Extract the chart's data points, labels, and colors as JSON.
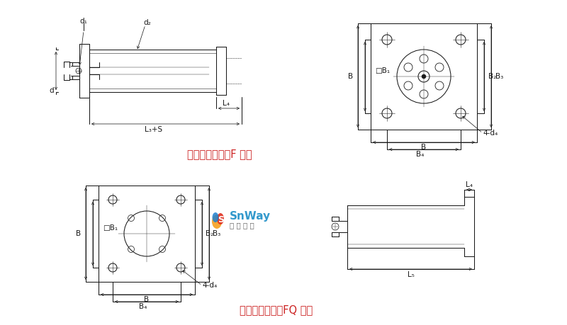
{
  "bg_color": "#ffffff",
  "line_color": "#1a1a1a",
  "title1": "后法兰式气缸（F 型）",
  "title2": "前法兰式气缸（FQ 型）",
  "title_color": "#cc2222",
  "title_fontsize": 10.5,
  "label_fontsize": 7.5,
  "snway_text": "SnWay",
  "snway_sub": "神 威 气 动"
}
